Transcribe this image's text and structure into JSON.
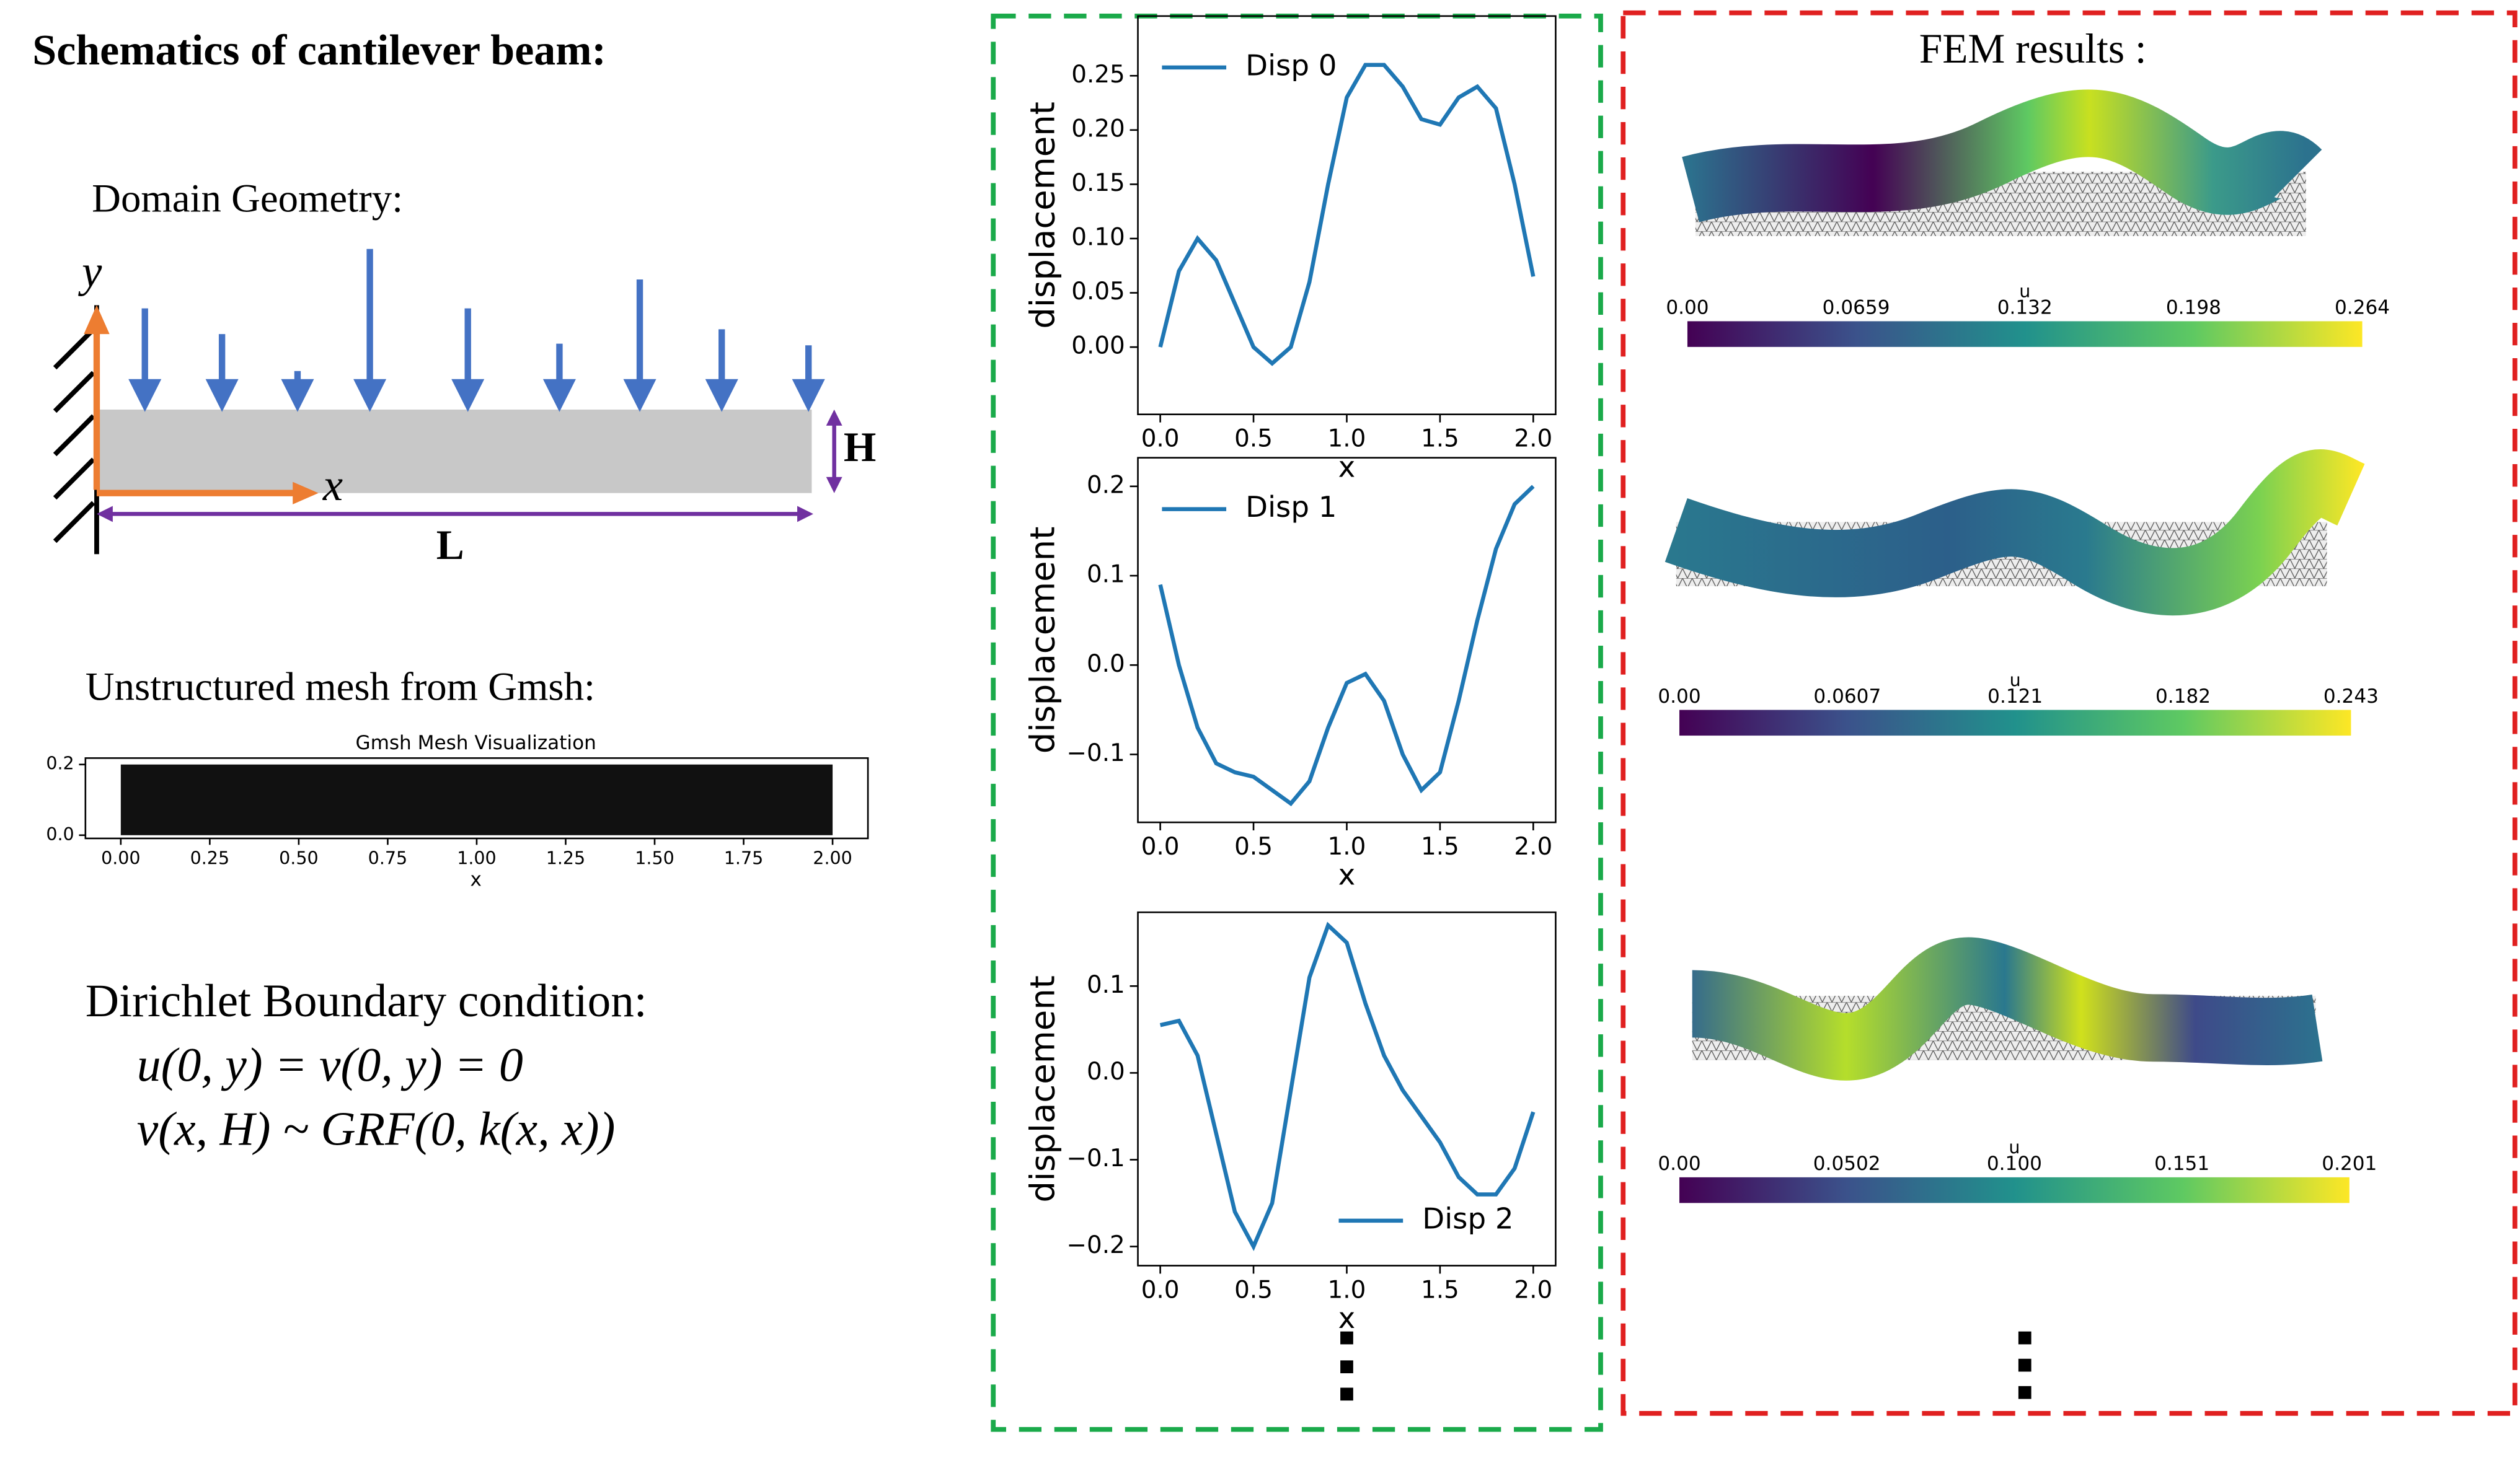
{
  "schematic": {
    "title": "Schematics of cantilever beam:",
    "geometry_title": "Domain Geometry:",
    "y_label": "y",
    "x_label": "x",
    "height_label": "H",
    "length_label": "L",
    "mesh_title": "Unstructured mesh from Gmsh:",
    "mesh_plot_title": "Gmsh Mesh Visualization",
    "mesh_yticks": [
      "0.2",
      "0.0"
    ],
    "mesh_xticks": [
      "0.00",
      "0.25",
      "0.50",
      "0.75",
      "1.00",
      "1.25",
      "1.50",
      "1.75",
      "2.00"
    ],
    "mesh_xlabel": "x",
    "bc_title": "Dirichlet Boundary condition:",
    "bc_eq1": "u(0, y) = v(0, y) = 0",
    "bc_eq2": "v(x, H) ~ GRF(0, k(x, x))"
  },
  "chart_data": [
    {
      "type": "line",
      "x": [
        0,
        0.1,
        0.2,
        0.3,
        0.4,
        0.5,
        0.6,
        0.7,
        0.8,
        0.9,
        1,
        1.1,
        1.2,
        1.3,
        1.4,
        1.5,
        1.6,
        1.7,
        1.8,
        1.9,
        2
      ],
      "series": [
        {
          "name": "Disp 0",
          "color": "#1f77b4",
          "values": [
            0,
            0.07,
            0.1,
            0.08,
            0.04,
            0,
            -0.015,
            0,
            0.06,
            0.15,
            0.23,
            0.26,
            0.26,
            0.24,
            0.21,
            0.205,
            0.23,
            0.24,
            0.22,
            0.15,
            0.065
          ]
        }
      ],
      "xlim": [
        -0.12,
        2.12
      ],
      "ylim": [
        -0.062,
        0.305
      ],
      "xticks": [
        {
          "value": 0,
          "label": "0.0"
        },
        0.5,
        {
          "value": 1,
          "label": "1.0"
        },
        1.5,
        {
          "value": 2,
          "label": "2.0"
        }
      ],
      "yticks": [
        {
          "value": 0,
          "label": "0.00"
        },
        0.05,
        {
          "value": 0.1,
          "label": "0.10"
        },
        0.15,
        {
          "value": 0.2,
          "label": "0.20"
        },
        0.25
      ],
      "xlabel": "x",
      "ylabel": "displacement",
      "legend": "upper left"
    },
    {
      "type": "line",
      "x": [
        0,
        0.1,
        0.2,
        0.3,
        0.4,
        0.5,
        0.6,
        0.7,
        0.8,
        0.9,
        1,
        1.1,
        1.2,
        1.3,
        1.4,
        1.5,
        1.6,
        1.7,
        1.8,
        1.9,
        2
      ],
      "series": [
        {
          "name": "Disp 1",
          "color": "#1f77b4",
          "values": [
            0.09,
            0,
            -0.07,
            -0.11,
            -0.12,
            -0.125,
            -0.14,
            -0.155,
            -0.13,
            -0.07,
            -0.02,
            -0.01,
            -0.04,
            -0.1,
            -0.14,
            -0.12,
            -0.04,
            0.05,
            0.13,
            0.18,
            0.2
          ]
        }
      ],
      "xlim": [
        -0.12,
        2.12
      ],
      "ylim": [
        -0.176,
        0.232
      ],
      "xticks": [
        {
          "value": 0,
          "label": "0.0"
        },
        0.5,
        {
          "value": 1,
          "label": "1.0"
        },
        1.5,
        {
          "value": 2,
          "label": "2.0"
        }
      ],
      "yticks": [
        {
          "value": -0.1,
          "label": "−0.1"
        },
        {
          "value": 0,
          "label": "0.0"
        },
        0.1,
        0.2
      ],
      "xlabel": "x",
      "ylabel": "displacement",
      "legend": "upper left"
    },
    {
      "type": "line",
      "x": [
        0,
        0.1,
        0.2,
        0.3,
        0.4,
        0.5,
        0.6,
        0.7,
        0.8,
        0.9,
        1,
        1.1,
        1.2,
        1.3,
        1.4,
        1.5,
        1.6,
        1.7,
        1.8,
        1.9,
        2
      ],
      "series": [
        {
          "name": "Disp 2",
          "color": "#1f77b4",
          "values": [
            0.055,
            0.06,
            0.02,
            -0.07,
            -0.16,
            -0.2,
            -0.15,
            -0.02,
            0.11,
            0.17,
            0.15,
            0.08,
            0.02,
            -0.02,
            -0.05,
            -0.08,
            -0.12,
            -0.14,
            -0.14,
            -0.11,
            -0.045
          ]
        }
      ],
      "xlim": [
        -0.12,
        2.12
      ],
      "ylim": [
        -0.222,
        0.185
      ],
      "xticks": [
        {
          "value": 0,
          "label": "0.0"
        },
        0.5,
        {
          "value": 1,
          "label": "1.0"
        },
        1.5,
        {
          "value": 2,
          "label": "2.0"
        }
      ],
      "yticks": [
        {
          "value": -0.2,
          "label": "−0.2"
        },
        {
          "value": -0.1,
          "label": "−0.1"
        },
        {
          "value": 0,
          "label": "0.0"
        },
        0.1
      ],
      "xlabel": "x",
      "ylabel": "displacement",
      "legend": "lower right"
    }
  ],
  "fem": {
    "title": "FEM results :",
    "colorbars": [
      {
        "label": "u",
        "ticks": [
          "0.00",
          "0.0659",
          "0.132",
          "0.198",
          "0.264"
        ]
      },
      {
        "label": "u",
        "ticks": [
          "0.00",
          "0.0607",
          "0.121",
          "0.182",
          "0.243"
        ]
      },
      {
        "label": "u",
        "ticks": [
          "0.00",
          "0.0502",
          "0.100",
          "0.151",
          "0.201"
        ]
      }
    ]
  }
}
